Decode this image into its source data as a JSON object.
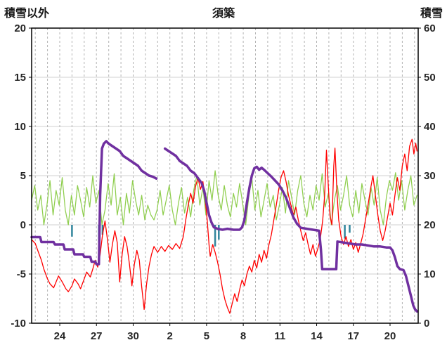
{
  "chart_data": {
    "type": "line",
    "title": "須築",
    "legend": "none",
    "grid": {
      "horizontal_solid": true,
      "vertical_dashed_daily": true
    },
    "colors": {
      "background": "#ffffff",
      "frame": "#000000",
      "h_grid": "#d0d0d0",
      "v_grid": "#b3b3b3",
      "text": "#262626",
      "red_series": "#ff0000",
      "green_series": "#8fce4e",
      "purple_series": "#7030a0",
      "blue_series": "#31859c"
    },
    "left_axis": {
      "title": "積雪以外",
      "min": -10,
      "max": 20,
      "ticks": [
        20,
        15,
        10,
        5,
        0,
        -5,
        -10
      ]
    },
    "right_axis": {
      "title": "積雪",
      "min": 0,
      "max": 60,
      "ticks": [
        60,
        50,
        40,
        30,
        20,
        10,
        0
      ]
    },
    "x_axis": {
      "min": 0,
      "max": 31.6,
      "tick_labels": [
        "24",
        "27",
        "30",
        "2",
        "5",
        "8",
        "11",
        "14",
        "17",
        "20"
      ],
      "tick_positions": [
        2.3,
        5.3,
        8.3,
        11.3,
        14.3,
        17.3,
        20.3,
        23.3,
        26.3,
        29.3
      ],
      "minor_gridline_start": 0.3,
      "minor_gridline_step": 1
    },
    "series": [
      {
        "id": "green-line",
        "color": "#8fce4e",
        "width": 1.25,
        "axis": "left",
        "type": "line",
        "x_start": 0,
        "x_step": 0.25,
        "values": [
          2.5,
          4.0,
          1.5,
          3.0,
          0,
          2.0,
          4.5,
          1.0,
          3.5,
          2.0,
          4.8,
          1.5,
          0,
          3.0,
          1.0,
          4.0,
          2.5,
          0.8,
          3.8,
          1.8,
          5.0,
          2.2,
          3.5,
          0,
          1.5,
          4.2,
          2.0,
          5.2,
          1.0,
          2.8,
          0,
          3.2,
          1.2,
          4.5,
          2.5,
          1.0,
          3.0,
          0.5,
          2.0,
          1.0,
          0.5,
          1.5,
          3.5,
          1.0,
          2.5,
          4.0,
          1.5,
          0,
          2.2,
          3.8,
          1.2,
          2.8,
          0.8,
          3.5,
          5.0,
          2.0,
          3.8,
          1.0,
          4.5,
          2.5,
          5.5,
          3.0,
          1.5,
          4.0,
          2.0,
          0.8,
          3.2,
          1.8,
          4.2,
          2.2,
          0,
          2.8,
          4.8,
          1.5,
          3.5,
          0.8,
          2.5,
          4.2,
          1.8,
          3.0,
          0.5,
          2.0,
          3.8,
          1.2,
          4.5,
          2.8,
          1.0,
          3.5,
          5.0,
          2.2,
          0.8,
          3.0,
          1.5,
          4.0,
          2.5,
          5.2,
          1.8,
          3.2,
          0,
          2.5,
          4.0,
          1.5,
          3.0,
          5.0,
          2.0,
          0.8,
          3.5,
          1.2,
          4.2,
          2.5,
          1.0,
          3.8,
          2.0,
          4.8,
          1.5,
          0,
          2.8,
          4.5,
          3.5,
          5.3,
          2.5,
          4.5,
          1.5,
          3.5,
          5.0,
          2.0,
          3.0
        ]
      },
      {
        "id": "blue-bars",
        "color": "#31859c",
        "width": 2.5,
        "axis": "left",
        "type": "bars",
        "points": [
          [
            3.3,
            -1.2
          ],
          [
            5.5,
            -1.8
          ],
          [
            5.8,
            -1.0
          ],
          [
            15.0,
            -2.2
          ],
          [
            15.3,
            -1.5
          ],
          [
            25.6,
            -1.4
          ],
          [
            26.0,
            -0.8
          ]
        ]
      },
      {
        "id": "red-line",
        "color": "#ff0000",
        "width": 1.3,
        "axis": "left",
        "type": "line",
        "points": [
          [
            0,
            -1.5
          ],
          [
            0.3,
            -1.9
          ],
          [
            0.5,
            -2.6
          ],
          [
            0.8,
            -3.6
          ],
          [
            1.0,
            -4.5
          ],
          [
            1.3,
            -5.5
          ],
          [
            1.5,
            -6.0
          ],
          [
            1.8,
            -6.4
          ],
          [
            2.0,
            -5.8
          ],
          [
            2.2,
            -5.2
          ],
          [
            2.5,
            -5.8
          ],
          [
            2.8,
            -6.5
          ],
          [
            3.0,
            -6.8
          ],
          [
            3.3,
            -6.2
          ],
          [
            3.5,
            -5.5
          ],
          [
            3.8,
            -6.0
          ],
          [
            4.0,
            -6.5
          ],
          [
            4.3,
            -5.5
          ],
          [
            4.5,
            -4.8
          ],
          [
            4.8,
            -5.3
          ],
          [
            5.0,
            -4.5
          ],
          [
            5.2,
            -3.6
          ],
          [
            5.4,
            -4.3
          ],
          [
            5.6,
            -3.0
          ],
          [
            5.8,
            -1.0
          ],
          [
            6.0,
            0.4
          ],
          [
            6.2,
            -1.5
          ],
          [
            6.4,
            -3.8
          ],
          [
            6.6,
            -2.0
          ],
          [
            6.8,
            -0.6
          ],
          [
            7.0,
            -1.8
          ],
          [
            7.2,
            -5.8
          ],
          [
            7.4,
            -3.0
          ],
          [
            7.6,
            -1.2
          ],
          [
            7.8,
            -2.2
          ],
          [
            8.0,
            -4.0
          ],
          [
            8.2,
            -6.2
          ],
          [
            8.4,
            -4.0
          ],
          [
            8.6,
            -2.6
          ],
          [
            8.8,
            -3.6
          ],
          [
            9.0,
            -6.3
          ],
          [
            9.2,
            -8.6
          ],
          [
            9.4,
            -6.0
          ],
          [
            9.6,
            -4.2
          ],
          [
            9.8,
            -3.0
          ],
          [
            10.0,
            -2.2
          ],
          [
            10.3,
            -2.8
          ],
          [
            10.6,
            -2.2
          ],
          [
            10.9,
            -2.7
          ],
          [
            11.2,
            -2.1
          ],
          [
            11.5,
            -2.5
          ],
          [
            11.8,
            -1.9
          ],
          [
            12.1,
            -2.4
          ],
          [
            12.4,
            -1.2
          ],
          [
            12.6,
            0.5
          ],
          [
            12.8,
            2.0
          ],
          [
            13.0,
            3.2
          ],
          [
            13.2,
            2.2
          ],
          [
            13.4,
            3.9
          ],
          [
            13.6,
            4.8
          ],
          [
            13.8,
            3.6
          ],
          [
            14.0,
            4.4
          ],
          [
            14.2,
            2.4
          ],
          [
            14.35,
            0.5
          ],
          [
            14.5,
            -2.0
          ],
          [
            14.6,
            -3.2
          ],
          [
            14.8,
            -2.0
          ],
          [
            15.0,
            -2.8
          ],
          [
            15.2,
            -3.8
          ],
          [
            15.4,
            -5.0
          ],
          [
            15.6,
            -6.5
          ],
          [
            15.8,
            -7.6
          ],
          [
            16.0,
            -8.4
          ],
          [
            16.2,
            -9.0
          ],
          [
            16.4,
            -8.0
          ],
          [
            16.6,
            -7.0
          ],
          [
            16.8,
            -7.8
          ],
          [
            17.0,
            -6.6
          ],
          [
            17.2,
            -5.6
          ],
          [
            17.4,
            -6.2
          ],
          [
            17.6,
            -5.0
          ],
          [
            17.8,
            -4.2
          ],
          [
            18.0,
            -4.8
          ],
          [
            18.2,
            -3.6
          ],
          [
            18.4,
            -4.4
          ],
          [
            18.6,
            -3.0
          ],
          [
            18.8,
            -3.8
          ],
          [
            19.0,
            -2.6
          ],
          [
            19.2,
            -3.4
          ],
          [
            19.4,
            -2.0
          ],
          [
            19.6,
            -1.0
          ],
          [
            19.8,
            0.5
          ],
          [
            20.0,
            2.0
          ],
          [
            20.2,
            3.6
          ],
          [
            20.4,
            4.9
          ],
          [
            20.6,
            5.5
          ],
          [
            20.8,
            4.4
          ],
          [
            21.0,
            3.0
          ],
          [
            21.2,
            2.0
          ],
          [
            21.4,
            1.0
          ],
          [
            21.6,
            1.8
          ],
          [
            21.8,
            0.5
          ],
          [
            22.0,
            -0.6
          ],
          [
            22.2,
            -1.6
          ],
          [
            22.4,
            -0.8
          ],
          [
            22.6,
            -2.0
          ],
          [
            22.8,
            -3.0
          ],
          [
            23.0,
            -2.0
          ],
          [
            23.2,
            -3.2
          ],
          [
            23.4,
            -2.4
          ],
          [
            23.6,
            -1.4
          ],
          [
            23.8,
            0.5
          ],
          [
            23.95,
            3.0
          ],
          [
            24.1,
            7.6
          ],
          [
            24.25,
            4.0
          ],
          [
            24.4,
            0.8
          ],
          [
            24.55,
            0.0
          ],
          [
            24.7,
            6.0
          ],
          [
            24.8,
            7.8
          ],
          [
            24.95,
            3.5
          ],
          [
            25.1,
            0.5
          ],
          [
            25.3,
            -1.2
          ],
          [
            25.5,
            -2.0
          ],
          [
            25.7,
            -1.2
          ],
          [
            25.9,
            -2.2
          ],
          [
            26.1,
            -1.5
          ],
          [
            26.3,
            -2.5
          ],
          [
            26.5,
            -1.8
          ],
          [
            26.7,
            -2.8
          ],
          [
            26.9,
            -1.9
          ],
          [
            27.1,
            -0.9
          ],
          [
            27.3,
            0.6
          ],
          [
            27.5,
            2.0
          ],
          [
            27.7,
            3.6
          ],
          [
            27.9,
            5.0
          ],
          [
            28.1,
            3.0
          ],
          [
            28.3,
            1.0
          ],
          [
            28.5,
            -0.6
          ],
          [
            28.7,
            -1.6
          ],
          [
            28.9,
            -0.6
          ],
          [
            29.1,
            0.8
          ],
          [
            29.3,
            2.2
          ],
          [
            29.5,
            1.0
          ],
          [
            29.7,
            3.0
          ],
          [
            29.9,
            4.8
          ],
          [
            30.1,
            3.5
          ],
          [
            30.3,
            6.0
          ],
          [
            30.5,
            7.2
          ],
          [
            30.7,
            5.5
          ],
          [
            30.9,
            8.0
          ],
          [
            31.1,
            8.7
          ],
          [
            31.25,
            7.2
          ],
          [
            31.4,
            8.3
          ],
          [
            31.5,
            7.5
          ]
        ]
      },
      {
        "id": "purple-line",
        "color": "#7030a0",
        "width": 3.5,
        "axis": "right",
        "type": "line",
        "points": [
          [
            0,
            17.5
          ],
          [
            0.7,
            17.5
          ],
          [
            0.8,
            16.5
          ],
          [
            1.8,
            16.5
          ],
          [
            1.9,
            16
          ],
          [
            2.6,
            16
          ],
          [
            2.7,
            15
          ],
          [
            3.4,
            15
          ],
          [
            3.5,
            14
          ],
          [
            4.2,
            14
          ],
          [
            4.3,
            13.5
          ],
          [
            4.8,
            13.5
          ],
          [
            4.9,
            12.5
          ],
          [
            5.2,
            12.5
          ],
          [
            5.3,
            12
          ],
          [
            5.5,
            12
          ],
          [
            5.6,
            26
          ],
          [
            5.75,
            35.5
          ],
          [
            5.9,
            36.5
          ],
          [
            6.1,
            37
          ],
          [
            6.3,
            36.5
          ],
          [
            6.6,
            36
          ],
          [
            6.9,
            35.5
          ],
          [
            7.2,
            35
          ],
          [
            7.5,
            34
          ],
          [
            7.8,
            33.5
          ],
          [
            8.1,
            33
          ],
          [
            8.4,
            32.5
          ],
          [
            8.7,
            32
          ],
          [
            9.0,
            31
          ],
          [
            9.3,
            30.5
          ],
          [
            9.6,
            30
          ],
          [
            9.9,
            29.8
          ],
          [
            10.2,
            29.4
          ],
          null,
          [
            10.9,
            35.5
          ],
          [
            11.2,
            35
          ],
          [
            11.5,
            34.5
          ],
          [
            11.8,
            34
          ],
          [
            12.1,
            33
          ],
          [
            12.4,
            32.5
          ],
          [
            12.7,
            32
          ],
          [
            13.0,
            31
          ],
          [
            13.3,
            30.5
          ],
          [
            13.6,
            29.5
          ],
          [
            13.9,
            28.5
          ],
          [
            14.1,
            27
          ],
          [
            14.3,
            24.5
          ],
          [
            14.5,
            22
          ],
          [
            14.7,
            20.5
          ],
          [
            14.9,
            19.5
          ],
          [
            15.2,
            19.2
          ],
          [
            15.6,
            19
          ],
          [
            16.0,
            19.2
          ],
          [
            16.5,
            19
          ],
          [
            17.0,
            19
          ],
          [
            17.2,
            19.5
          ],
          [
            17.4,
            21
          ],
          [
            17.6,
            24.5
          ],
          [
            17.8,
            27.5
          ],
          [
            18.0,
            30
          ],
          [
            18.2,
            31.5
          ],
          [
            18.4,
            31.8
          ],
          [
            18.6,
            31.2
          ],
          [
            18.8,
            31.6
          ],
          [
            19.0,
            31.2
          ],
          [
            19.3,
            30.5
          ],
          [
            19.6,
            29.8
          ],
          [
            19.9,
            29
          ],
          [
            20.2,
            28.2
          ],
          [
            20.5,
            27
          ],
          [
            20.8,
            25.5
          ],
          [
            21.1,
            23.5
          ],
          [
            21.4,
            21.5
          ],
          [
            21.7,
            20.2
          ],
          [
            22.0,
            19.4
          ],
          [
            22.5,
            19.2
          ],
          [
            23.0,
            19
          ],
          [
            23.5,
            18.8
          ],
          [
            23.65,
            15
          ],
          [
            23.75,
            11
          ],
          [
            24.9,
            11
          ],
          [
            25.0,
            16.6
          ],
          [
            25.5,
            16.4
          ],
          [
            26.0,
            16.2
          ],
          [
            26.5,
            16
          ],
          [
            27.0,
            16
          ],
          [
            27.5,
            15.8
          ],
          [
            28.0,
            15.6
          ],
          [
            28.5,
            15.6
          ],
          [
            29.0,
            15.4
          ],
          [
            29.3,
            15.4
          ],
          [
            29.5,
            14.8
          ],
          [
            29.7,
            13.4
          ],
          [
            29.9,
            11.6
          ],
          [
            30.1,
            11
          ],
          [
            30.4,
            10.8
          ],
          [
            30.6,
            9.6
          ],
          [
            30.8,
            7.6
          ],
          [
            31.0,
            5.6
          ],
          [
            31.2,
            3.6
          ],
          [
            31.35,
            2.8
          ],
          [
            31.5,
            2.4
          ]
        ]
      }
    ]
  }
}
